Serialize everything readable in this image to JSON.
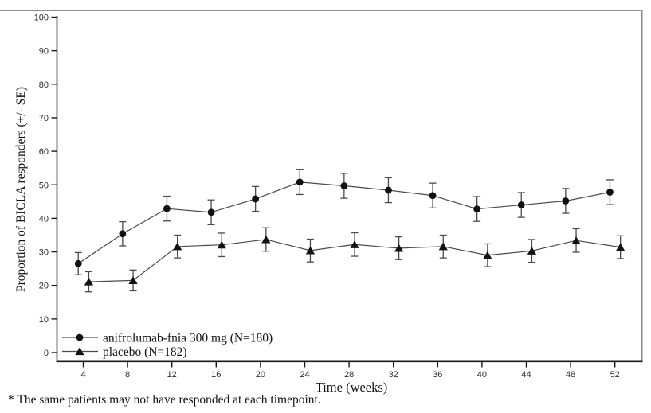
{
  "figure": {
    "footnote": "* The same patients may not have responded at each timepoint.",
    "frame_color": "#8e8e8e",
    "axis_color": "#1a1a1a",
    "line_color": "#4a4a4a",
    "marker_color": "#111111",
    "tick_label_color": "#2e2e2e",
    "background_color": "#ffffff"
  },
  "chart_data": {
    "type": "line",
    "title": "",
    "xlabel": "Time (weeks)",
    "ylabel": "Proportion of BICLA responders (+/- SE)",
    "x": [
      4,
      8,
      12,
      16,
      20,
      24,
      28,
      32,
      36,
      40,
      44,
      48,
      52
    ],
    "x_ticks": [
      4,
      8,
      12,
      16,
      20,
      24,
      28,
      32,
      36,
      40,
      44,
      48,
      52
    ],
    "y_ticks": [
      0,
      10,
      20,
      30,
      40,
      50,
      60,
      70,
      80,
      90,
      100
    ],
    "ylim": [
      0,
      100
    ],
    "xlim": [
      2,
      54.5
    ],
    "grid": false,
    "legend_position": "inside-bottom-left",
    "error_bars": "standard error",
    "series": [
      {
        "name": "anifrolumab-fnia 300 mg (N=180)",
        "marker": "circle",
        "x_offset_weeks": -0.45,
        "values": [
          26.5,
          35.4,
          42.9,
          41.8,
          45.8,
          50.8,
          49.7,
          48.4,
          46.8,
          42.8,
          44.0,
          45.2,
          47.8
        ],
        "se": [
          3.3,
          3.6,
          3.7,
          3.7,
          3.7,
          3.7,
          3.7,
          3.7,
          3.7,
          3.7,
          3.7,
          3.7,
          3.7
        ]
      },
      {
        "name": "placebo (N=182)",
        "marker": "triangle",
        "x_offset_weeks": 0.5,
        "values": [
          21.1,
          21.5,
          31.6,
          32.1,
          33.7,
          30.4,
          32.2,
          31.1,
          31.6,
          29.0,
          30.3,
          33.4,
          31.4
        ],
        "se": [
          3.0,
          3.1,
          3.4,
          3.5,
          3.5,
          3.4,
          3.5,
          3.4,
          3.4,
          3.4,
          3.4,
          3.5,
          3.4
        ]
      }
    ]
  }
}
